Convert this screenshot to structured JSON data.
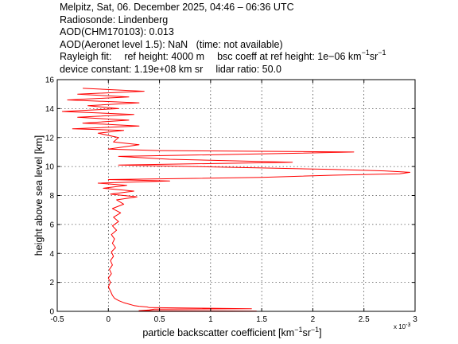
{
  "header": {
    "line1": "Melpitz, Sat, 06. December 2025, 04:46 – 06:36 UTC",
    "line2": "Radiosonde: Lindenberg",
    "line3": "AOD(CHM170103): 0.013",
    "line4": "AOD(Aeronet level 1.5): NaN   (time: not available)",
    "rayleigh_label": "Rayleigh fit:",
    "ref_height": "ref height: 4000 m",
    "bsc_coeff_text": "bsc coeff at ref height: 1e−06 km",
    "bsc_unit_exp1": "−1",
    "bsc_unit_sr": "sr",
    "bsc_unit_exp2": "−1",
    "device_constant": "device constant: 1.19e+08 km sr",
    "lidar_ratio": "lidar ratio: 50.0"
  },
  "colors": {
    "profile": "#ff0000",
    "axes": "#000000",
    "grid": "#000000"
  },
  "chart_data": {
    "type": "line",
    "title": "",
    "xlabel": "particle backscatter coefficient [km",
    "xlabel_exp1": "−1",
    "xlabel_sr": "sr",
    "xlabel_exp2": "−1",
    "xlabel_close": "]",
    "ylabel": "height above sea level [km]",
    "x_multiplier_label": "x 10",
    "x_multiplier_exp": "-3",
    "xlim": [
      -0.5,
      3
    ],
    "ylim": [
      0,
      16
    ],
    "xticks": [
      -0.5,
      0,
      0.5,
      1,
      1.5,
      2,
      2.5,
      3
    ],
    "xtick_labels": [
      "-0.5",
      "0",
      "0.5",
      "1",
      "1.5",
      "2",
      "2.5",
      "3"
    ],
    "yticks": [
      0,
      2,
      4,
      6,
      8,
      10,
      12,
      14,
      16
    ],
    "ytick_labels": [
      "0",
      "2",
      "4",
      "6",
      "8",
      "10",
      "12",
      "14",
      "16"
    ],
    "grid": true,
    "series": [
      {
        "x_unit_scale": "1e-3",
        "points": [
          [
            1.45,
            0.02
          ],
          [
            0.3,
            0.05
          ],
          [
            0.4,
            0.1
          ],
          [
            0.45,
            0.15
          ],
          [
            1.4,
            0.18
          ],
          [
            0.9,
            0.22
          ],
          [
            0.4,
            0.26
          ],
          [
            0.38,
            0.3
          ],
          [
            0.3,
            0.35
          ],
          [
            0.25,
            0.4
          ],
          [
            0.2,
            0.5
          ],
          [
            0.15,
            0.6
          ],
          [
            0.1,
            0.75
          ],
          [
            0.06,
            0.9
          ],
          [
            0.04,
            1.1
          ],
          [
            0.02,
            1.4
          ],
          [
            0.0,
            1.7
          ],
          [
            0.02,
            2.0
          ],
          [
            0.0,
            2.3
          ],
          [
            0.03,
            2.6
          ],
          [
            0.01,
            2.9
          ],
          [
            0.04,
            3.2
          ],
          [
            0.02,
            3.5
          ],
          [
            0.05,
            3.8
          ],
          [
            0.03,
            4.1
          ],
          [
            0.07,
            4.4
          ],
          [
            0.04,
            4.7
          ],
          [
            0.06,
            5.0
          ],
          [
            0.03,
            5.3
          ],
          [
            0.08,
            5.6
          ],
          [
            0.04,
            5.9
          ],
          [
            0.1,
            6.2
          ],
          [
            0.05,
            6.5
          ],
          [
            0.12,
            6.8
          ],
          [
            0.04,
            7.1
          ],
          [
            0.15,
            7.4
          ],
          [
            0.08,
            7.7
          ],
          [
            0.28,
            7.9
          ],
          [
            0.02,
            8.1
          ],
          [
            0.25,
            8.3
          ],
          [
            -0.05,
            8.5
          ],
          [
            0.18,
            8.7
          ],
          [
            -0.1,
            8.85
          ],
          [
            0.6,
            9.0
          ],
          [
            0.0,
            9.1
          ],
          [
            1.5,
            9.25
          ],
          [
            2.2,
            9.4
          ],
          [
            2.85,
            9.5
          ],
          [
            2.95,
            9.6
          ],
          [
            2.7,
            9.7
          ],
          [
            2.2,
            9.8
          ],
          [
            1.5,
            9.9
          ],
          [
            0.8,
            10.0
          ],
          [
            0.1,
            10.1
          ],
          [
            1.8,
            10.3
          ],
          [
            0.6,
            10.5
          ],
          [
            0.1,
            10.7
          ],
          [
            1.7,
            10.9
          ],
          [
            2.4,
            11.0
          ],
          [
            0.5,
            11.1
          ],
          [
            0.0,
            11.2
          ],
          [
            0.3,
            11.5
          ],
          [
            0.05,
            11.7
          ],
          [
            0.1,
            12.0
          ],
          [
            -0.1,
            12.3
          ],
          [
            0.15,
            12.5
          ],
          [
            -0.35,
            12.6
          ],
          [
            0.3,
            12.8
          ],
          [
            -0.25,
            13.0
          ],
          [
            0.2,
            13.2
          ],
          [
            -0.3,
            13.4
          ],
          [
            0.25,
            13.6
          ],
          [
            -0.45,
            13.8
          ],
          [
            0.1,
            14.0
          ],
          [
            -0.2,
            14.2
          ],
          [
            0.3,
            14.4
          ],
          [
            -0.4,
            14.6
          ],
          [
            0.2,
            14.8
          ],
          [
            -0.3,
            15.0
          ],
          [
            0.35,
            15.2
          ],
          [
            -0.25,
            15.4
          ]
        ]
      }
    ]
  }
}
